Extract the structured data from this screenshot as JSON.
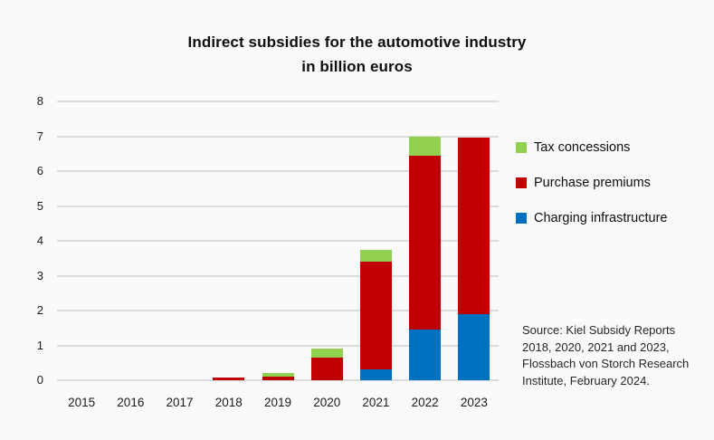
{
  "page": {
    "background_color": "#FAFAFA",
    "gridline_color": "#DBDBDB",
    "text_color": "#1A1A1A"
  },
  "title": {
    "line1": "Indirect subsidies for the automotive industry",
    "line2": "in billion euros"
  },
  "legend": {
    "position": "right",
    "items": [
      {
        "label": "Tax concessions",
        "color": "#92D050"
      },
      {
        "label": "Purchase premiums",
        "color": "#C00000"
      },
      {
        "label": "Charging infrastructure",
        "color": "#0070C0"
      }
    ]
  },
  "source_note": {
    "lines": [
      "Source: Kiel Subsidy Reports",
      "2018, 2020, 2021 and 2023,",
      "Flossbach von Storch Research",
      "Institute, February 2024."
    ]
  },
  "chart_data": {
    "type": "bar",
    "stacked": true,
    "title": "Indirect subsidies for the automotive industry in billion euros",
    "categories": [
      "2015",
      "2016",
      "2017",
      "2018",
      "2019",
      "2020",
      "2021",
      "2022",
      "2023"
    ],
    "series": [
      {
        "name": "Charging infrastructure",
        "color": "#0070C0",
        "values": [
          0,
          0,
          0,
          0,
          0,
          0,
          0.3,
          1.45,
          1.9
        ]
      },
      {
        "name": "Purchase premiums",
        "color": "#C00000",
        "values": [
          0,
          0,
          0,
          0.07,
          0.1,
          0.65,
          3.1,
          5.0,
          5.05
        ]
      },
      {
        "name": "Tax concessions",
        "color": "#92D050",
        "values": [
          0,
          0,
          0,
          0,
          0.1,
          0.25,
          0.35,
          0.55,
          0
        ]
      }
    ],
    "totals": [
      0,
      0,
      0,
      0.07,
      0.2,
      0.9,
      3.75,
      7.0,
      6.95
    ],
    "xlabel": "",
    "ylabel": "",
    "ylim": [
      0,
      8
    ],
    "ytick_step": 1,
    "ytick_labels": [
      "0",
      "1",
      "2",
      "3",
      "4",
      "5",
      "6",
      "7",
      "8"
    ],
    "grid": true,
    "legend_position": "right",
    "source": "Source: Kiel Subsidy Reports 2018, 2020, 2021 and 2023, Flossbach von Storch Research Institute, February 2024."
  }
}
